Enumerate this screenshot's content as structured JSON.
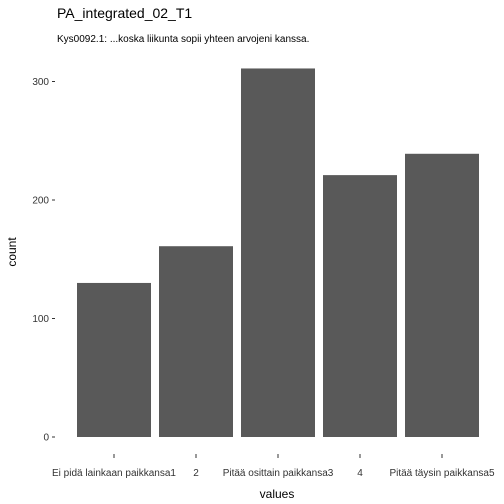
{
  "chart_data": {
    "type": "bar",
    "title": "PA_integrated_02_T1",
    "subtitle": "Kys0092.1: ...koska liikunta sopii yhteen arvojeni kanssa.",
    "xlabel": "values",
    "ylabel": "count",
    "categories": [
      "Ei pidä lainkaan paikkansa1",
      "2",
      "Pitää osittain paikkansa3",
      "4",
      "Pitää täysin paikkansa5"
    ],
    "values": [
      130,
      161,
      311,
      221,
      239
    ],
    "ylim": [
      0,
      325
    ],
    "yticks": [
      0,
      100,
      200,
      300
    ],
    "grid": false,
    "bar_color": "#595959"
  }
}
